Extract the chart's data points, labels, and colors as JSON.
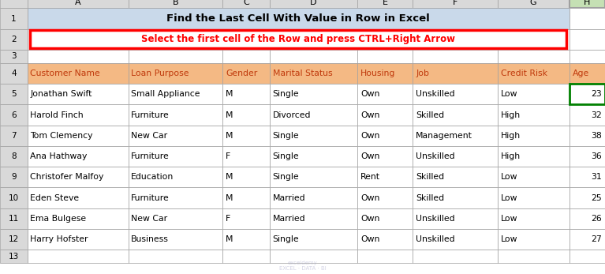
{
  "title": "Find the Last Cell With Value in Row in Excel",
  "subtitle": "Select the first cell of the Row and press CTRL+Right Arrow",
  "col_labels": [
    "A",
    "B",
    "C",
    "D",
    "E",
    "F",
    "G",
    "H"
  ],
  "row_labels": [
    "1",
    "2",
    "3",
    "4",
    "5",
    "6",
    "7",
    "8",
    "9",
    "10",
    "11",
    "12",
    "13"
  ],
  "headers": [
    "Customer Name",
    "Loan Purpose",
    "Gender",
    "Marital Status",
    "Housing",
    "Job",
    "Credit Risk",
    "Age"
  ],
  "data": [
    [
      "Jonathan Swift",
      "Small Appliance",
      "M",
      "Single",
      "Own",
      "Unskilled",
      "Low",
      "23"
    ],
    [
      "Harold Finch",
      "Furniture",
      "M",
      "Divorced",
      "Own",
      "Skilled",
      "High",
      "32"
    ],
    [
      "Tom Clemency",
      "New Car",
      "M",
      "Single",
      "Own",
      "Management",
      "High",
      "38"
    ],
    [
      "Ana Hathway",
      "Furniture",
      "F",
      "Single",
      "Own",
      "Unskilled",
      "High",
      "36"
    ],
    [
      "Christofer Malfoy",
      "Education",
      "M",
      "Single",
      "Rent",
      "Skilled",
      "Low",
      "31"
    ],
    [
      "Eden Steve",
      "Furniture",
      "M",
      "Married",
      "Own",
      "Skilled",
      "Low",
      "25"
    ],
    [
      "Ema Bulgese",
      "New Car",
      "F",
      "Married",
      "Own",
      "Unskilled",
      "Low",
      "26"
    ],
    [
      "Harry Hofster",
      "Business",
      "M",
      "Single",
      "Own",
      "Unskilled",
      "Low",
      "27"
    ]
  ],
  "col_widths": [
    1.55,
    1.45,
    0.72,
    1.35,
    0.85,
    1.3,
    1.1,
    0.55
  ],
  "header_bg": "#F4B984",
  "title_bg": "#C9D9EA",
  "col_header_bg": "#D9D9D9",
  "highlight_col_H_bg": "#C5E0B4",
  "highlight_row5_border": "#008000",
  "grid_color": "#A0A0A0",
  "subtitle_color": "#FF0000",
  "subtitle_border_color": "#FF0000",
  "header_text_color": "#C0390B",
  "data_text_color": "#000000",
  "fig_bg": "#FFFFFF"
}
